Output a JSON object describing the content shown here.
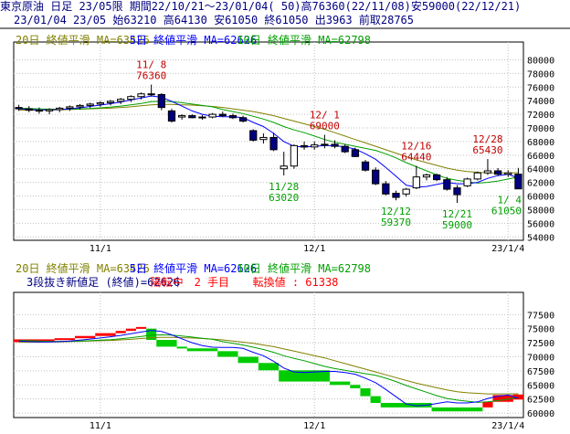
{
  "header": {
    "line1": "東京原油 日足 23/05限 期間22/10/21～23/01/04( 50)高76360(22/11/08)安59000(22/12/21)",
    "line2": "23/01/04 23/05 始63210 高64130 安61050 終61050 出3963 前取28765"
  },
  "colors": {
    "ma20": "#808000",
    "ma5": "#0000ff",
    "ma10": "#00a000",
    "candle_up": "#ffffff",
    "candle_down": "#000080",
    "annotation_high": "#c00000",
    "annotation_low": "#00a000",
    "reversal_up": "#ff0000",
    "reversal_down": "#00cc00",
    "grid": "#c0c0c0"
  },
  "chart_data": [
    {
      "type": "candlestick",
      "legend": [
        {
          "key": "ma20",
          "label": "20日 終値平滑 MA=63426"
        },
        {
          "key": "ma5",
          "label": "5日 終値平滑 MA=62626"
        },
        {
          "key": "ma10",
          "label": "10日 終値平滑 MA=62798"
        }
      ],
      "y_ticks": [
        80000,
        78000,
        76000,
        74000,
        72000,
        70000,
        68000,
        66000,
        64000,
        62000,
        60000,
        58000,
        56000,
        54000
      ],
      "ylim": [
        53500,
        81000
      ],
      "x_ticks": [
        {
          "index": 8,
          "label": "11/1"
        },
        {
          "index": 29,
          "label": "12/1"
        },
        {
          "index": 48,
          "label": "23/1/4"
        }
      ],
      "annotations": [
        {
          "index": 13,
          "date": "11/ 8",
          "value": "76360",
          "kind": "high"
        },
        {
          "index": 30,
          "date": "12/ 1",
          "value": "69000",
          "kind": "high"
        },
        {
          "index": 26,
          "date": "11/28",
          "value": "63020",
          "kind": "low"
        },
        {
          "index": 39,
          "date": "12/16",
          "value": "64440",
          "kind": "high"
        },
        {
          "index": 37,
          "date": "12/12",
          "value": "59370",
          "kind": "low"
        },
        {
          "index": 43,
          "date": "12/21",
          "value": "59000",
          "kind": "low"
        },
        {
          "index": 46,
          "date": "12/28",
          "value": "65430",
          "kind": "high"
        },
        {
          "index": 49,
          "date": "1/ 4",
          "value": "61050",
          "kind": "low"
        }
      ],
      "candles": [
        [
          73000,
          73400,
          72500,
          72800
        ],
        [
          72800,
          73200,
          72300,
          72600
        ],
        [
          72600,
          73000,
          72100,
          72500
        ],
        [
          72500,
          72900,
          72000,
          72700
        ],
        [
          72700,
          73100,
          72300,
          72900
        ],
        [
          72900,
          73300,
          72500,
          73100
        ],
        [
          73100,
          73500,
          72700,
          73300
        ],
        [
          73300,
          73700,
          72900,
          73500
        ],
        [
          73500,
          73900,
          73100,
          73700
        ],
        [
          73700,
          74100,
          73300,
          73900
        ],
        [
          73900,
          74400,
          73500,
          74200
        ],
        [
          74200,
          74800,
          73800,
          74600
        ],
        [
          74600,
          75200,
          74200,
          75000
        ],
        [
          75000,
          76360,
          74600,
          74900
        ],
        [
          74900,
          75100,
          72600,
          73000
        ],
        [
          72500,
          72800,
          70800,
          71000
        ],
        [
          71600,
          72000,
          71200,
          71800
        ],
        [
          71800,
          72000,
          71400,
          71500
        ],
        [
          71500,
          71900,
          71200,
          71600
        ],
        [
          71600,
          72200,
          71400,
          72000
        ],
        [
          72000,
          72400,
          71600,
          71800
        ],
        [
          71800,
          72100,
          71300,
          71500
        ],
        [
          71500,
          71800,
          70800,
          71000
        ],
        [
          69600,
          69800,
          68000,
          68200
        ],
        [
          68300,
          69200,
          67700,
          68600
        ],
        [
          68600,
          69300,
          66600,
          66800
        ],
        [
          64000,
          66500,
          63020,
          64400
        ],
        [
          64400,
          67600,
          64000,
          67400
        ],
        [
          67400,
          68000,
          66800,
          67200
        ],
        [
          67200,
          68000,
          66800,
          67500
        ],
        [
          67500,
          69000,
          67000,
          67600
        ],
        [
          67600,
          68200,
          67000,
          67300
        ],
        [
          67300,
          67600,
          66300,
          66500
        ],
        [
          66800,
          67100,
          65700,
          65800
        ],
        [
          65000,
          65300,
          63600,
          63800
        ],
        [
          63800,
          64200,
          61600,
          61800
        ],
        [
          61800,
          62200,
          60100,
          60300
        ],
        [
          60400,
          60800,
          59370,
          59800
        ],
        [
          60300,
          61200,
          59900,
          61000
        ],
        [
          61200,
          64440,
          61000,
          62800
        ],
        [
          62800,
          63300,
          62300,
          63100
        ],
        [
          63100,
          63300,
          62200,
          62400
        ],
        [
          62400,
          62800,
          60800,
          61000
        ],
        [
          61200,
          61600,
          59000,
          60200
        ],
        [
          61500,
          62700,
          61300,
          62500
        ],
        [
          62500,
          63600,
          62300,
          63400
        ],
        [
          63400,
          65430,
          63100,
          63700
        ],
        [
          63700,
          64100,
          63000,
          63200
        ],
        [
          63200,
          63800,
          62800,
          63400
        ],
        [
          63210,
          64130,
          61050,
          61050
        ]
      ],
      "ma5": [
        72800,
        72700,
        72650,
        72650,
        72700,
        72800,
        72950,
        73150,
        73350,
        73550,
        73800,
        74100,
        74400,
        74700,
        74500,
        73900,
        73200,
        72500,
        72000,
        71700,
        71650,
        71650,
        71500,
        70800,
        70200,
        69200,
        68000,
        67300,
        67200,
        67300,
        67400,
        67400,
        67200,
        66900,
        66200,
        65400,
        64200,
        62900,
        61600,
        61300,
        61400,
        61700,
        62000,
        61800,
        61800,
        62000,
        62600,
        63000,
        63200,
        62626
      ],
      "ma10": [
        72900,
        72850,
        72800,
        72750,
        72750,
        72750,
        72800,
        72850,
        72950,
        73050,
        73200,
        73400,
        73600,
        73850,
        73900,
        73850,
        73700,
        73500,
        73300,
        73100,
        72700,
        72400,
        72100,
        71700,
        71300,
        70800,
        70200,
        69700,
        69300,
        68800,
        68300,
        67900,
        67600,
        67300,
        67000,
        66700,
        66200,
        65600,
        64900,
        64300,
        63700,
        63100,
        62600,
        62300,
        62100,
        61900,
        62000,
        62200,
        62500,
        62798
      ],
      "ma20": [
        72600,
        72600,
        72600,
        72650,
        72650,
        72700,
        72750,
        72800,
        72850,
        72900,
        73000,
        73100,
        73250,
        73400,
        73450,
        73450,
        73400,
        73350,
        73250,
        73150,
        73000,
        72800,
        72600,
        72400,
        72100,
        71800,
        71400,
        71000,
        70600,
        70200,
        69800,
        69300,
        68800,
        68300,
        67800,
        67300,
        66800,
        66300,
        65800,
        65300,
        64900,
        64500,
        64100,
        63800,
        63600,
        63500,
        63400,
        63400,
        63400,
        63426
      ]
    },
    {
      "type": "three-line-break",
      "legend": [
        {
          "key": "ma20",
          "label": "20日 終値平滑 MA=63426"
        },
        {
          "key": "ma5",
          "label": "5日 終値平滑 MA=62626"
        },
        {
          "key": "ma10",
          "label": "10日 終値平滑 MA=62798"
        }
      ],
      "status_prefix": "3段抜き新値足 (終値)=62626",
      "status_state": "陽転中",
      "status_count": "2 手目",
      "status_reversal": "転換値 : 61338",
      "y_ticks": [
        77500,
        75000,
        72500,
        70000,
        67500,
        65000,
        62500,
        60000
      ],
      "ylim": [
        59200,
        79500
      ],
      "x_ticks": [
        {
          "index": 8,
          "label": "11/1"
        },
        {
          "index": 29,
          "label": "12/1"
        },
        {
          "index": 48,
          "label": "23/1/4"
        }
      ],
      "bricks": [
        {
          "from": 0,
          "to": 4,
          "low": 72600,
          "high": 73100,
          "up": true
        },
        {
          "from": 4,
          "to": 6,
          "low": 73100,
          "high": 73300,
          "up": true
        },
        {
          "from": 6,
          "to": 8,
          "low": 73300,
          "high": 73700,
          "up": true
        },
        {
          "from": 8,
          "to": 10,
          "low": 73700,
          "high": 74200,
          "up": true
        },
        {
          "from": 10,
          "to": 11,
          "low": 74200,
          "high": 74600,
          "up": true
        },
        {
          "from": 11,
          "to": 12,
          "low": 74600,
          "high": 75000,
          "up": true
        },
        {
          "from": 12,
          "to": 13,
          "low": 75000,
          "high": 75300,
          "up": true
        },
        {
          "from": 13,
          "to": 14,
          "low": 73000,
          "high": 75000,
          "up": false
        },
        {
          "from": 14,
          "to": 16,
          "low": 71800,
          "high": 73000,
          "up": false
        },
        {
          "from": 16,
          "to": 17,
          "low": 71500,
          "high": 71800,
          "up": false
        },
        {
          "from": 17,
          "to": 20,
          "low": 71000,
          "high": 71500,
          "up": false
        },
        {
          "from": 20,
          "to": 22,
          "low": 70000,
          "high": 71000,
          "up": false
        },
        {
          "from": 22,
          "to": 24,
          "low": 68900,
          "high": 70000,
          "up": false
        },
        {
          "from": 24,
          "to": 26,
          "low": 67600,
          "high": 68900,
          "up": false
        },
        {
          "from": 26,
          "to": 31,
          "low": 65600,
          "high": 67600,
          "up": false
        },
        {
          "from": 31,
          "to": 33,
          "low": 65000,
          "high": 65600,
          "up": false
        },
        {
          "from": 33,
          "to": 34,
          "low": 64400,
          "high": 65000,
          "up": false
        },
        {
          "from": 34,
          "to": 35,
          "low": 63000,
          "high": 64400,
          "up": false
        },
        {
          "from": 35,
          "to": 36,
          "low": 61800,
          "high": 63000,
          "up": false
        },
        {
          "from": 36,
          "to": 41,
          "low": 61000,
          "high": 61800,
          "up": false
        },
        {
          "from": 41,
          "to": 46,
          "low": 60300,
          "high": 61000,
          "up": false
        },
        {
          "from": 46,
          "to": 47,
          "low": 61000,
          "high": 62000,
          "up": true
        },
        {
          "from": 47,
          "to": 49,
          "low": 62000,
          "high": 63200,
          "up": true
        },
        {
          "from": 49,
          "to": 50,
          "low": 62400,
          "high": 63300,
          "up": true
        }
      ]
    }
  ]
}
